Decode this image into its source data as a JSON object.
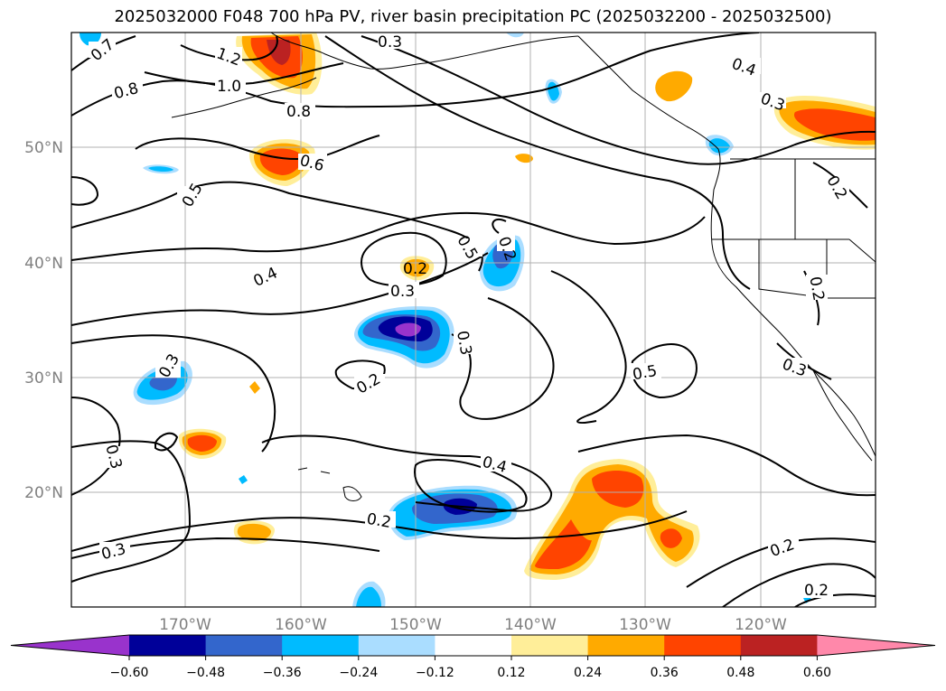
{
  "title": "2025032000 F048 700 hPa PV, river basin precipitation PC (2025032200 - 2025032500)",
  "map": {
    "lat_labels": [
      "50°N",
      "40°N",
      "30°N",
      "20°N"
    ],
    "lon_labels": [
      "170°W",
      "160°W",
      "150°W",
      "140°W",
      "130°W",
      "120°W"
    ],
    "contour_labels": [
      "0.7",
      "0.8",
      "1.2",
      "1.0",
      "0.8",
      "0.3",
      "0.4",
      "0.3",
      "0.6",
      "0.5",
      "0.5",
      "0.2",
      "0.4",
      "0.3",
      "0.2",
      "0.3",
      "0.3",
      "0.2",
      "0.5",
      "0.3",
      "0.3",
      "0.4",
      "0.2",
      "0.3",
      "0.2",
      "0.2",
      "0.2",
      "0.2"
    ],
    "gridlines": true,
    "colorbar": {
      "orientation": "horizontal",
      "extend": "both",
      "ticks": [
        "−0.60",
        "−0.48",
        "−0.36",
        "−0.24",
        "−0.12",
        "0.12",
        "0.24",
        "0.36",
        "0.48",
        "0.60"
      ],
      "colors": [
        "#9933cc",
        "#000099",
        "#3366cc",
        "#00bbff",
        "#aaddff",
        "#ffffff",
        "#ffee99",
        "#ffaa00",
        "#ff4400",
        "#bb2222",
        "#ff88aa"
      ]
    }
  }
}
